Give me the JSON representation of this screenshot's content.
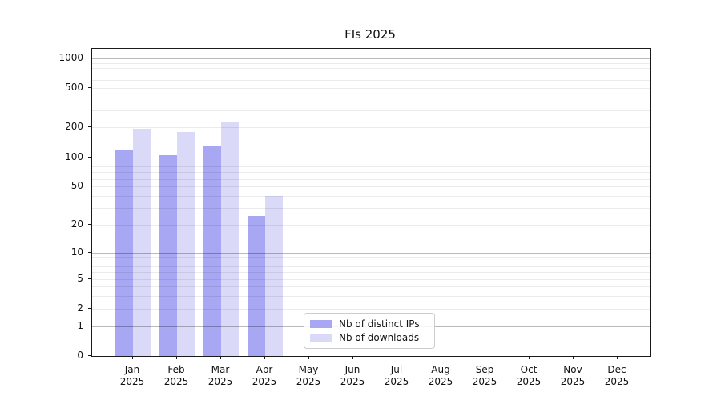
{
  "title": "FIs 2025",
  "chart_data": {
    "type": "bar",
    "title": "FIs 2025",
    "y_scale": "log1p",
    "ylim": [
      0,
      1250
    ],
    "grid": true,
    "legend_position": "lower center",
    "y_ticks": [
      1000,
      500,
      200,
      100,
      50,
      20,
      10,
      5,
      2,
      1,
      0
    ],
    "y_major_gridlines": [
      1000,
      100,
      10,
      1
    ],
    "y_minor_gridlines": [
      2,
      3,
      4,
      5,
      6,
      7,
      8,
      9,
      20,
      30,
      40,
      50,
      60,
      70,
      80,
      90,
      200,
      300,
      400,
      500,
      600,
      700,
      800,
      900
    ],
    "x_year": "2025",
    "categories": [
      "Jan",
      "Feb",
      "Mar",
      "Apr",
      "May",
      "Jun",
      "Jul",
      "Aug",
      "Sep",
      "Oct",
      "Nov",
      "Dec"
    ],
    "series": [
      {
        "name": "Nb of distinct IPs",
        "color": "#a7a7f4",
        "values": [
          120,
          104,
          128,
          25,
          null,
          null,
          null,
          null,
          null,
          null,
          null,
          null
        ]
      },
      {
        "name": "Nb of downloads",
        "color": "#dadaf8",
        "values": [
          196,
          181,
          229,
          40,
          null,
          null,
          null,
          null,
          null,
          null,
          null,
          null
        ]
      }
    ]
  }
}
